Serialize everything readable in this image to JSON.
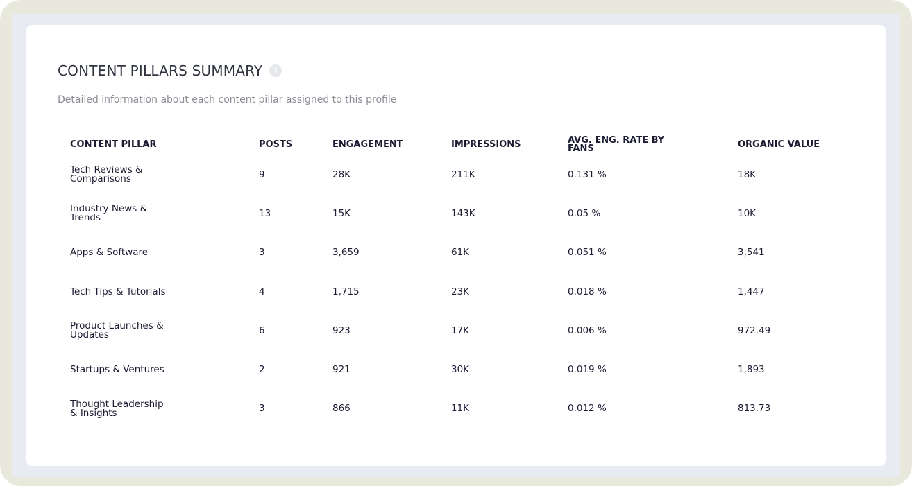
{
  "header": {
    "title": "CONTENT PILLARS SUMMARY",
    "info_icon": "info-circle-icon",
    "subtitle": "Detailed information about each content pillar assigned to this profile"
  },
  "table": {
    "columns": [
      "CONTENT PILLAR",
      "POSTS",
      "ENGAGEMENT",
      "IMPRESSIONS",
      "AVG. ENG. RATE BY FANS",
      "ORGANIC VALUE"
    ],
    "rows": [
      [
        "Tech Reviews & Comparisons",
        "9",
        "28K",
        "211K",
        "0.131 %",
        "18K"
      ],
      [
        "Industry News & Trends",
        "13",
        "15K",
        "143K",
        "0.05 %",
        "10K"
      ],
      [
        "Apps & Software",
        "3",
        "3,659",
        "61K",
        "0.051 %",
        "3,541"
      ],
      [
        "Tech Tips & Tutorials",
        "4",
        "1,715",
        "23K",
        "0.018 %",
        "1,447"
      ],
      [
        "Product Launches & Updates",
        "6",
        "923",
        "17K",
        "0.006 %",
        "972.49"
      ],
      [
        "Startups & Ventures",
        "2",
        "921",
        "30K",
        "0.019 %",
        "1,893"
      ],
      [
        "Thought Leadership & Insights",
        "3",
        "866",
        "11K",
        "0.012 %",
        "813.73"
      ]
    ]
  },
  "colors": {
    "outer_bg": "#e8e9dc",
    "panel_bg": "#e8ecf2",
    "card_bg": "#ffffff",
    "text": "#1c1c33"
  }
}
